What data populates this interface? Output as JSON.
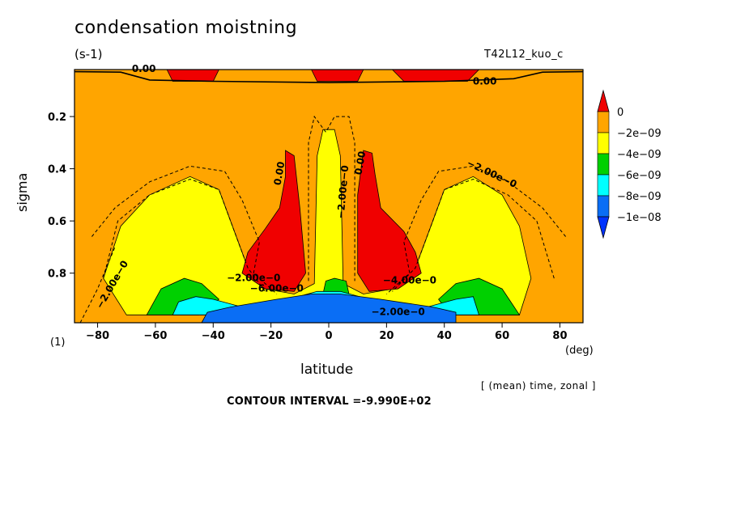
{
  "chart_data": {
    "type": "heatmap",
    "title": "condensation moistning",
    "units": "(s-1)",
    "run_id": "T42L12_kuo_c",
    "xlabel": "latitude",
    "x_unit": "(deg)",
    "ylabel": "sigma",
    "aux_label": "(1)",
    "subnote": "[ (mean) time, zonal ]",
    "contour_interval_text": "CONTOUR INTERVAL =-9.990E+02",
    "xlim": [
      -88,
      88
    ],
    "ylim": [
      0.02,
      0.99
    ],
    "y_reversed": true,
    "x_ticks": [
      -80,
      -60,
      -40,
      -20,
      0,
      20,
      40,
      60,
      80
    ],
    "x_tick_labels": [
      "−80",
      "−60",
      "−40",
      "−20",
      "0",
      "20",
      "40",
      "60",
      "80"
    ],
    "y_ticks": [
      0.2,
      0.4,
      0.6,
      0.8
    ],
    "y_tick_labels": [
      "0.2",
      "0.4",
      "0.6",
      "0.8"
    ],
    "colorbar": {
      "levels": [
        "0",
        "−2e−09",
        "−4e−09",
        "−6e−09",
        "−8e−09",
        "−1e−08"
      ],
      "colors": [
        "#f00000",
        "#ffa500",
        "#ffff00",
        "#00d000",
        "#00ffff",
        "#0a6ef5",
        "#0033ff"
      ]
    },
    "contour_labels": [
      "0.00",
      "0.00",
      "0.00",
      "0.00",
      "−2.00e−0",
      "−2.00e−0",
      "−2.00e−0",
      "−2.00e−0",
      "−4.00e−0",
      "−6.00e−0",
      "−2.00e−0"
    ],
    "regions": [
      {
        "name": "red-top-1",
        "level": "positive",
        "points": [
          [
            -56,
            0.02
          ],
          [
            -38,
            0.02
          ],
          [
            -40,
            0.065
          ],
          [
            -54,
            0.065
          ]
        ]
      },
      {
        "name": "red-top-2",
        "level": "positive",
        "points": [
          [
            -6,
            0.02
          ],
          [
            12,
            0.02
          ],
          [
            10,
            0.065
          ],
          [
            -4,
            0.065
          ]
        ]
      },
      {
        "name": "red-top-3",
        "level": "positive",
        "points": [
          [
            22,
            0.02
          ],
          [
            52,
            0.02
          ],
          [
            48,
            0.065
          ],
          [
            26,
            0.065
          ]
        ]
      },
      {
        "name": "yellow-left",
        "level": "-2e-09",
        "points": [
          [
            -70,
            0.96
          ],
          [
            -78,
            0.82
          ],
          [
            -72,
            0.62
          ],
          [
            -62,
            0.5
          ],
          [
            -48,
            0.43
          ],
          [
            -38,
            0.48
          ],
          [
            -34,
            0.6
          ],
          [
            -28,
            0.78
          ],
          [
            -22,
            0.86
          ],
          [
            -12,
            0.88
          ],
          [
            -5,
            0.84
          ],
          [
            -4,
            0.35
          ],
          [
            -2,
            0.25
          ],
          [
            2,
            0.25
          ],
          [
            4,
            0.35
          ],
          [
            5,
            0.84
          ],
          [
            12,
            0.88
          ],
          [
            22,
            0.86
          ],
          [
            30,
            0.78
          ],
          [
            36,
            0.6
          ],
          [
            40,
            0.48
          ],
          [
            50,
            0.43
          ],
          [
            60,
            0.5
          ],
          [
            66,
            0.62
          ],
          [
            70,
            0.82
          ],
          [
            66,
            0.96
          ]
        ]
      },
      {
        "name": "green-left",
        "level": "-4e-09",
        "points": [
          [
            -63,
            0.96
          ],
          [
            -58,
            0.86
          ],
          [
            -50,
            0.82
          ],
          [
            -44,
            0.84
          ],
          [
            -38,
            0.9
          ],
          [
            -45,
            0.96
          ]
        ]
      },
      {
        "name": "green-right",
        "level": "-4e-09",
        "points": [
          [
            42,
            0.96
          ],
          [
            38,
            0.9
          ],
          [
            44,
            0.84
          ],
          [
            52,
            0.82
          ],
          [
            60,
            0.86
          ],
          [
            66,
            0.96
          ]
        ]
      },
      {
        "name": "green-center",
        "level": "-4e-09",
        "points": [
          [
            -2,
            0.88
          ],
          [
            -1,
            0.83
          ],
          [
            2,
            0.82
          ],
          [
            6,
            0.83
          ],
          [
            7,
            0.88
          ]
        ]
      },
      {
        "name": "cyan-band",
        "level": "-6e-09",
        "points": [
          [
            -54,
            0.96
          ],
          [
            -52,
            0.91
          ],
          [
            -46,
            0.89
          ],
          [
            -40,
            0.9
          ],
          [
            -30,
            0.93
          ],
          [
            -14,
            0.9
          ],
          [
            -4,
            0.87
          ],
          [
            4,
            0.87
          ],
          [
            14,
            0.9
          ],
          [
            34,
            0.93
          ],
          [
            44,
            0.9
          ],
          [
            50,
            0.89
          ],
          [
            52,
            0.96
          ]
        ]
      },
      {
        "name": "blue-band",
        "level": "-8e-09",
        "points": [
          [
            -44,
            0.99
          ],
          [
            -42,
            0.95
          ],
          [
            -34,
            0.93
          ],
          [
            -18,
            0.9
          ],
          [
            -6,
            0.88
          ],
          [
            4,
            0.88
          ],
          [
            18,
            0.9
          ],
          [
            36,
            0.93
          ],
          [
            44,
            0.95
          ],
          [
            44,
            0.99
          ]
        ]
      },
      {
        "name": "red-left",
        "level": "positive",
        "points": [
          [
            -15,
            0.33
          ],
          [
            -12,
            0.35
          ],
          [
            -10,
            0.55
          ],
          [
            -8,
            0.8
          ],
          [
            -12,
            0.87
          ],
          [
            -22,
            0.86
          ],
          [
            -30,
            0.8
          ],
          [
            -28,
            0.72
          ],
          [
            -22,
            0.63
          ],
          [
            -17,
            0.55
          ],
          [
            -15,
            0.43
          ]
        ]
      },
      {
        "name": "red-right",
        "level": "positive",
        "points": [
          [
            12,
            0.33
          ],
          [
            15,
            0.34
          ],
          [
            16,
            0.42
          ],
          [
            18,
            0.55
          ],
          [
            26,
            0.64
          ],
          [
            30,
            0.72
          ],
          [
            32,
            0.8
          ],
          [
            24,
            0.86
          ],
          [
            14,
            0.87
          ],
          [
            10,
            0.8
          ],
          [
            10,
            0.5
          ]
        ]
      }
    ]
  }
}
